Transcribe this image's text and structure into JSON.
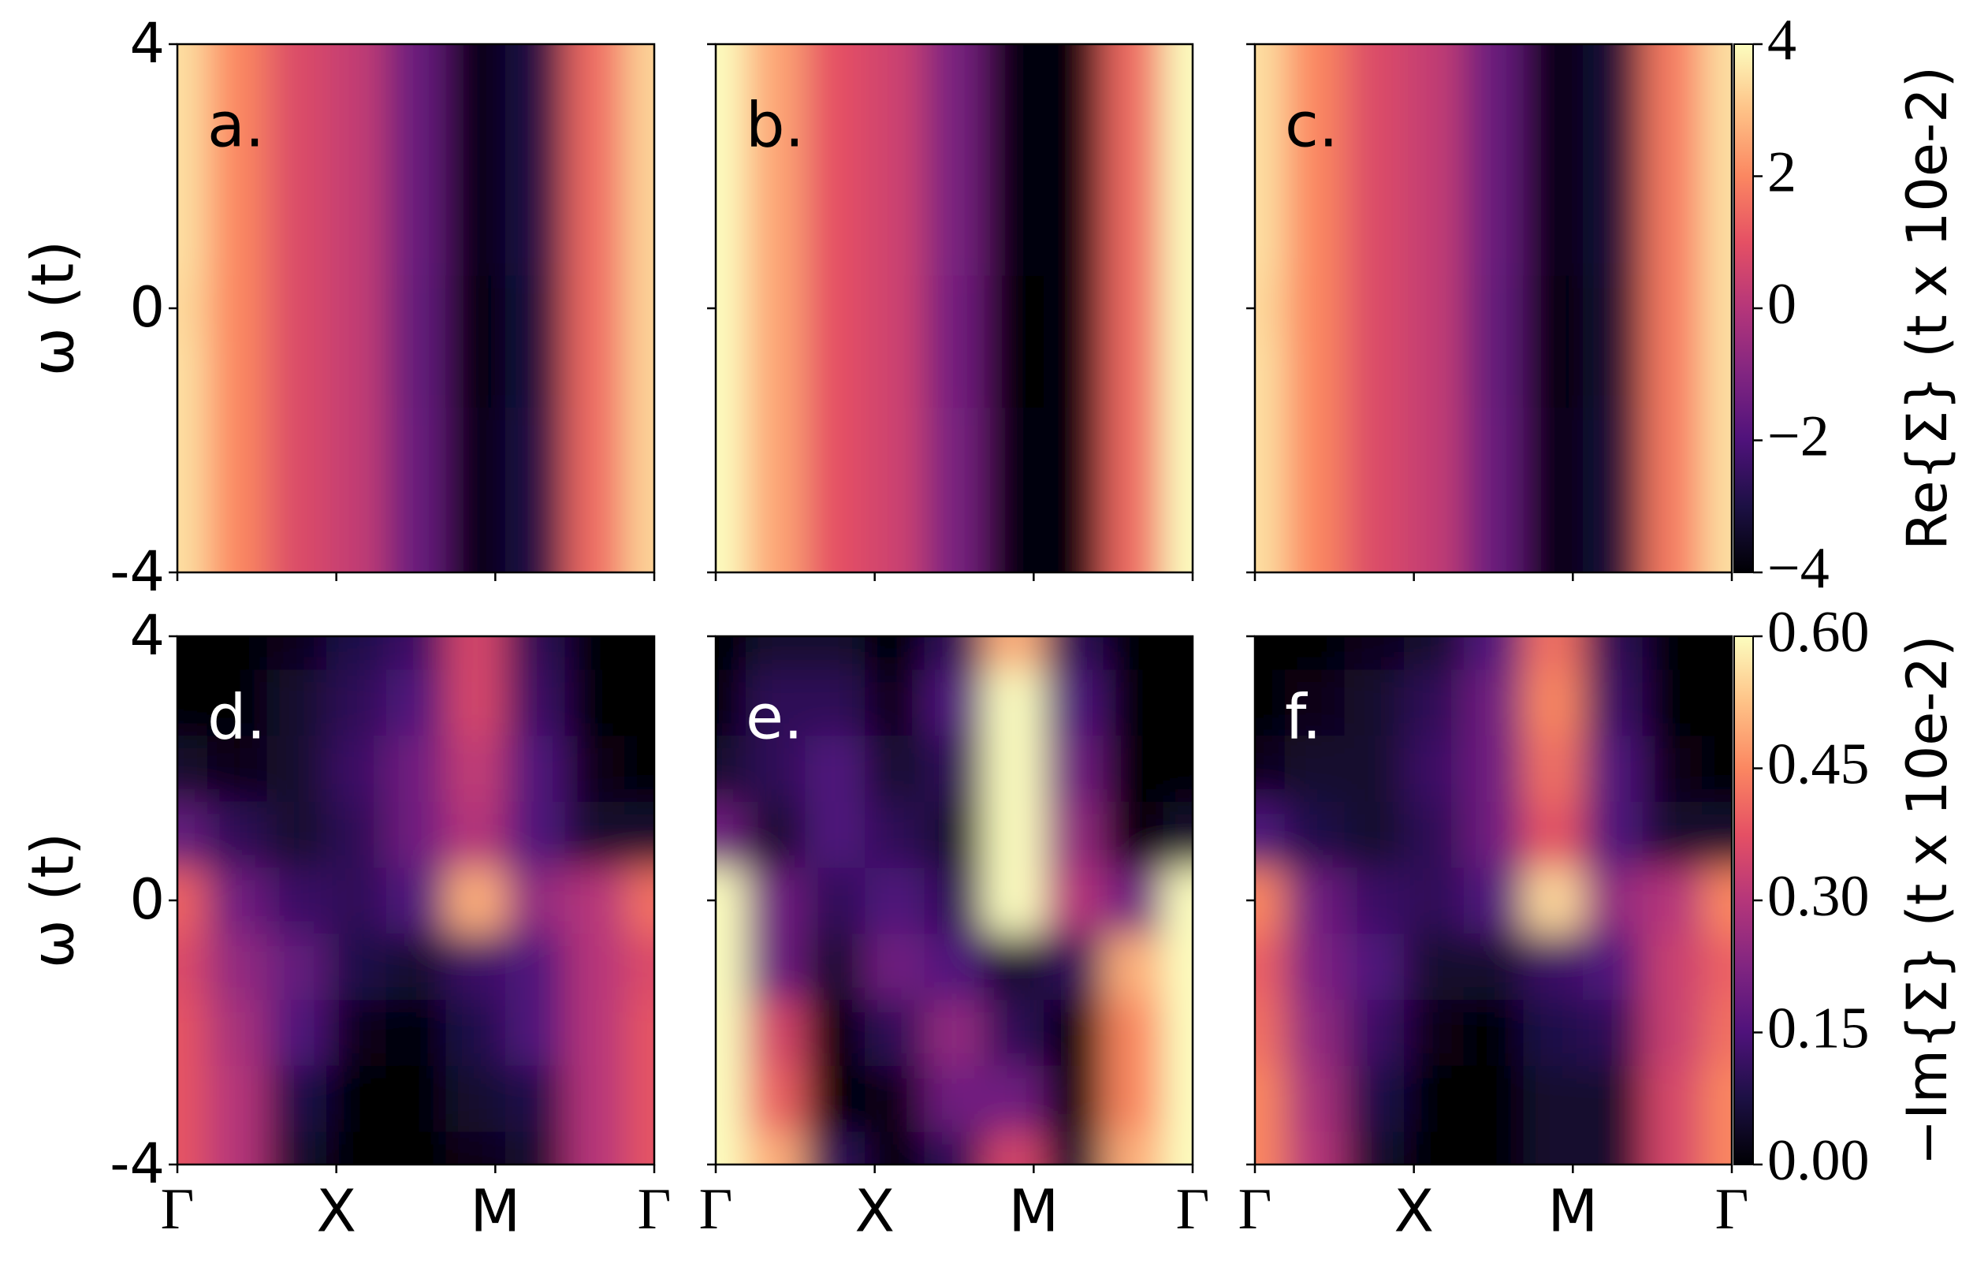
{
  "chart_data": [
    {
      "type": "heatmap",
      "title": "a.",
      "ylabel": "ω (t)",
      "cmap": "magma",
      "zlim": [
        -4,
        4
      ],
      "x": [
        0,
        0.375,
        0.75,
        1.125,
        1.5,
        1.875,
        2.25,
        2.625,
        3
      ],
      "y": [
        -4,
        -3,
        -2,
        -1,
        0,
        1,
        2,
        3,
        4
      ],
      "z": [
        [
          3.5,
          2.0,
          0.8,
          0.3,
          -1.5,
          -3.8,
          -3.0,
          1.5,
          3.3
        ],
        [
          3.5,
          2.0,
          0.8,
          0.3,
          -1.5,
          -3.8,
          -3.0,
          1.5,
          3.3
        ],
        [
          3.5,
          2.0,
          0.8,
          0.3,
          -1.5,
          -3.8,
          -3.0,
          1.5,
          3.3
        ],
        [
          3.5,
          2.0,
          0.8,
          0.3,
          -1.6,
          -4.0,
          -3.1,
          1.5,
          3.3
        ],
        [
          3.4,
          2.0,
          0.8,
          0.3,
          -1.6,
          -4.0,
          -3.1,
          1.5,
          3.3
        ],
        [
          3.5,
          2.0,
          0.8,
          0.3,
          -1.5,
          -3.8,
          -3.0,
          1.5,
          3.3
        ],
        [
          3.5,
          2.0,
          0.8,
          0.3,
          -1.5,
          -3.8,
          -3.0,
          1.5,
          3.3
        ],
        [
          3.5,
          2.0,
          0.8,
          0.3,
          -1.5,
          -3.8,
          -3.0,
          1.5,
          3.3
        ],
        [
          3.5,
          2.0,
          0.8,
          0.3,
          -1.5,
          -3.8,
          -3.0,
          1.5,
          3.3
        ]
      ],
      "xlim": [
        0,
        3
      ],
      "ylim": [
        -4,
        4
      ],
      "xticks": [
        0,
        1,
        2,
        3
      ],
      "yticks": [
        -4,
        0,
        4
      ]
    },
    {
      "type": "heatmap",
      "title": "b.",
      "cmap": "magma",
      "zlim": [
        -4,
        4
      ],
      "x": [
        0,
        0.375,
        0.75,
        1.125,
        1.5,
        1.875,
        2.25,
        2.625,
        3
      ],
      "y": [
        -4,
        -3,
        -2,
        -1,
        0,
        1,
        2,
        3,
        4
      ],
      "z": [
        [
          4,
          2.5,
          1.0,
          0.5,
          -1.2,
          -3.8,
          -3.8,
          1.5,
          4
        ],
        [
          4,
          2.5,
          1.0,
          0.5,
          -1.2,
          -3.8,
          -3.8,
          1.5,
          4
        ],
        [
          4,
          2.5,
          1.0,
          0.5,
          -1.2,
          -3.8,
          -3.8,
          1.5,
          4
        ],
        [
          4,
          2.5,
          1.0,
          0.5,
          -1.3,
          -4.0,
          -3.9,
          1.5,
          4
        ],
        [
          4,
          2.5,
          1.0,
          0.5,
          -1.3,
          -4.0,
          -3.9,
          1.5,
          4
        ],
        [
          4,
          2.5,
          1.0,
          0.5,
          -1.2,
          -3.8,
          -3.8,
          1.5,
          4
        ],
        [
          4,
          2.5,
          1.0,
          0.5,
          -1.2,
          -3.8,
          -3.8,
          1.5,
          4
        ],
        [
          4,
          2.5,
          1.0,
          0.5,
          -1.2,
          -3.8,
          -3.8,
          1.5,
          4
        ],
        [
          4,
          2.5,
          1.0,
          0.5,
          -1.2,
          -3.8,
          -3.8,
          1.5,
          4
        ]
      ],
      "xlim": [
        0,
        3
      ],
      "ylim": [
        -4,
        4
      ],
      "xticks": [
        0,
        1,
        2,
        3
      ],
      "yticks": [
        -4,
        0,
        4
      ]
    },
    {
      "type": "heatmap",
      "title": "c.",
      "cmap": "magma",
      "zlim": [
        -4,
        4
      ],
      "x": [
        0,
        0.375,
        0.75,
        1.125,
        1.5,
        1.875,
        2.25,
        2.625,
        3
      ],
      "y": [
        -4,
        -3,
        -2,
        -1,
        0,
        1,
        2,
        3,
        4
      ],
      "z": [
        [
          3.5,
          2.0,
          0.8,
          0.3,
          -1.5,
          -3.8,
          -3.2,
          1.8,
          3.5
        ],
        [
          3.5,
          2.0,
          0.8,
          0.3,
          -1.5,
          -3.8,
          -3.2,
          1.8,
          3.5
        ],
        [
          3.5,
          2.0,
          0.8,
          0.3,
          -1.5,
          -3.8,
          -3.2,
          1.8,
          3.5
        ],
        [
          3.5,
          2.0,
          0.8,
          0.3,
          -1.6,
          -4.0,
          -3.3,
          1.8,
          3.5
        ],
        [
          3.4,
          2.0,
          0.8,
          0.3,
          -1.6,
          -4.0,
          -3.3,
          1.8,
          3.5
        ],
        [
          3.5,
          2.0,
          0.8,
          0.3,
          -1.5,
          -3.8,
          -3.2,
          1.8,
          3.5
        ],
        [
          3.5,
          2.0,
          0.8,
          0.3,
          -1.5,
          -3.8,
          -3.2,
          1.8,
          3.5
        ],
        [
          3.5,
          2.0,
          0.8,
          0.3,
          -1.5,
          -3.8,
          -3.2,
          1.8,
          3.5
        ],
        [
          3.5,
          2.0,
          0.8,
          0.3,
          -1.5,
          -3.8,
          -3.2,
          1.8,
          3.5
        ]
      ],
      "xlim": [
        0,
        3
      ],
      "ylim": [
        -4,
        4
      ],
      "xticks": [
        0,
        1,
        2,
        3
      ],
      "yticks": [
        -4,
        0,
        4
      ],
      "colorbar": {
        "label": "Re{Σ} (t x 10e-2)",
        "ticks": [
          {
            "value": -4,
            "label": "−4"
          },
          {
            "value": -2,
            "label": "−2"
          },
          0,
          2,
          4
        ]
      }
    },
    {
      "type": "heatmap",
      "title": "d.",
      "ylabel": "ω (t)",
      "cmap": "magma",
      "zlim": [
        0,
        0.6
      ],
      "x": [
        0,
        0.375,
        0.75,
        1.125,
        1.5,
        1.875,
        2.25,
        2.625,
        3
      ],
      "y": [
        -4,
        -3,
        -2,
        -1,
        0,
        1,
        2,
        3,
        4
      ],
      "z": [
        [
          0.38,
          0.3,
          0.05,
          0.0,
          0.0,
          0.02,
          0.05,
          0.3,
          0.38
        ],
        [
          0.38,
          0.3,
          0.08,
          0.0,
          0.0,
          0.05,
          0.08,
          0.3,
          0.38
        ],
        [
          0.38,
          0.28,
          0.15,
          0.03,
          0.0,
          0.08,
          0.15,
          0.3,
          0.38
        ],
        [
          0.36,
          0.25,
          0.18,
          0.08,
          0.05,
          0.12,
          0.15,
          0.3,
          0.36
        ],
        [
          0.4,
          0.2,
          0.12,
          0.1,
          0.15,
          0.5,
          0.25,
          0.3,
          0.42
        ],
        [
          0.18,
          0.1,
          0.05,
          0.1,
          0.2,
          0.3,
          0.15,
          0.05,
          0.05
        ],
        [
          0.05,
          0.02,
          0.05,
          0.12,
          0.2,
          0.32,
          0.15,
          0.02,
          0.0
        ],
        [
          0.0,
          0.0,
          0.05,
          0.1,
          0.15,
          0.35,
          0.12,
          0.0,
          0.0
        ],
        [
          0.0,
          0.0,
          0.03,
          0.08,
          0.12,
          0.35,
          0.1,
          0.0,
          0.0
        ]
      ],
      "xlim": [
        0,
        3
      ],
      "ylim": [
        -4,
        4
      ],
      "xticks": [
        {
          "value": 0,
          "label": "Γ"
        },
        {
          "value": 1,
          "label": "X"
        },
        {
          "value": 2,
          "label": "M"
        },
        {
          "value": 3,
          "label": "Γ"
        }
      ],
      "yticks": [
        -4,
        0,
        4
      ]
    },
    {
      "type": "heatmap",
      "title": "e.",
      "cmap": "magma",
      "zlim": [
        0,
        0.6
      ],
      "x": [
        0,
        0.375,
        0.75,
        1.125,
        1.5,
        1.875,
        2.25,
        2.625,
        3
      ],
      "y": [
        -4,
        -3,
        -2,
        -1,
        0,
        1,
        2,
        3,
        4
      ],
      "z": [
        [
          0.6,
          0.5,
          0.1,
          0.0,
          0.1,
          0.35,
          0.05,
          0.5,
          0.6
        ],
        [
          0.6,
          0.4,
          0.0,
          0.02,
          0.2,
          0.2,
          0.0,
          0.45,
          0.6
        ],
        [
          0.6,
          0.35,
          0.0,
          0.1,
          0.25,
          0.1,
          0.0,
          0.45,
          0.6
        ],
        [
          0.6,
          0.2,
          0.05,
          0.2,
          0.15,
          0.05,
          0.1,
          0.5,
          0.6
        ],
        [
          0.6,
          0.2,
          0.1,
          0.15,
          0.1,
          0.6,
          0.3,
          0.2,
          0.6
        ],
        [
          0.2,
          0.05,
          0.15,
          0.1,
          0.05,
          0.6,
          0.25,
          0.0,
          0.05
        ],
        [
          0.05,
          0.1,
          0.15,
          0.05,
          0.1,
          0.6,
          0.2,
          0.0,
          0.0
        ],
        [
          0.0,
          0.1,
          0.1,
          0.02,
          0.15,
          0.6,
          0.15,
          0.0,
          0.0
        ],
        [
          0.0,
          0.05,
          0.05,
          0.0,
          0.1,
          0.5,
          0.1,
          0.0,
          0.0
        ]
      ],
      "xlim": [
        0,
        3
      ],
      "ylim": [
        -4,
        4
      ],
      "xticks": [
        {
          "value": 0,
          "label": "Γ"
        },
        {
          "value": 1,
          "label": "X"
        },
        {
          "value": 2,
          "label": "M"
        },
        {
          "value": 3,
          "label": "Γ"
        }
      ],
      "yticks": [
        -4,
        0,
        4
      ]
    },
    {
      "type": "heatmap",
      "title": "f.",
      "cmap": "magma",
      "zlim": [
        0,
        0.6
      ],
      "x": [
        0,
        0.375,
        0.75,
        1.125,
        1.5,
        1.875,
        2.25,
        2.625,
        3
      ],
      "y": [
        -4,
        -3,
        -2,
        -1,
        0,
        1,
        2,
        3,
        4
      ],
      "z": [
        [
          0.45,
          0.3,
          0.05,
          0.0,
          0.0,
          0.05,
          0.05,
          0.35,
          0.45
        ],
        [
          0.45,
          0.28,
          0.08,
          0.0,
          0.0,
          0.05,
          0.05,
          0.35,
          0.45
        ],
        [
          0.42,
          0.25,
          0.12,
          0.02,
          0.0,
          0.08,
          0.1,
          0.33,
          0.42
        ],
        [
          0.4,
          0.22,
          0.15,
          0.05,
          0.05,
          0.12,
          0.15,
          0.33,
          0.4
        ],
        [
          0.45,
          0.2,
          0.12,
          0.1,
          0.15,
          0.55,
          0.25,
          0.3,
          0.45
        ],
        [
          0.15,
          0.08,
          0.05,
          0.1,
          0.2,
          0.38,
          0.15,
          0.05,
          0.05
        ],
        [
          0.03,
          0.05,
          0.05,
          0.12,
          0.2,
          0.42,
          0.15,
          0.02,
          0.0
        ],
        [
          0.0,
          0.02,
          0.05,
          0.1,
          0.2,
          0.45,
          0.12,
          0.0,
          0.0
        ],
        [
          0.0,
          0.0,
          0.03,
          0.05,
          0.15,
          0.42,
          0.1,
          0.0,
          0.0
        ]
      ],
      "xlim": [
        0,
        3
      ],
      "ylim": [
        -4,
        4
      ],
      "xticks": [
        {
          "value": 0,
          "label": "Γ"
        },
        {
          "value": 1,
          "label": "X"
        },
        {
          "value": 2,
          "label": "M"
        },
        {
          "value": 3,
          "label": "Γ"
        }
      ],
      "yticks": [
        -4,
        0,
        4
      ],
      "colorbar": {
        "label": "−Im{Σ} (t x 10e-2)",
        "ticks": [
          {
            "value": 0,
            "label": "0.00"
          },
          0.15,
          {
            "value": 0.3,
            "label": "0.30"
          },
          0.45,
          {
            "value": 0.6,
            "label": "0.60"
          }
        ]
      }
    }
  ]
}
